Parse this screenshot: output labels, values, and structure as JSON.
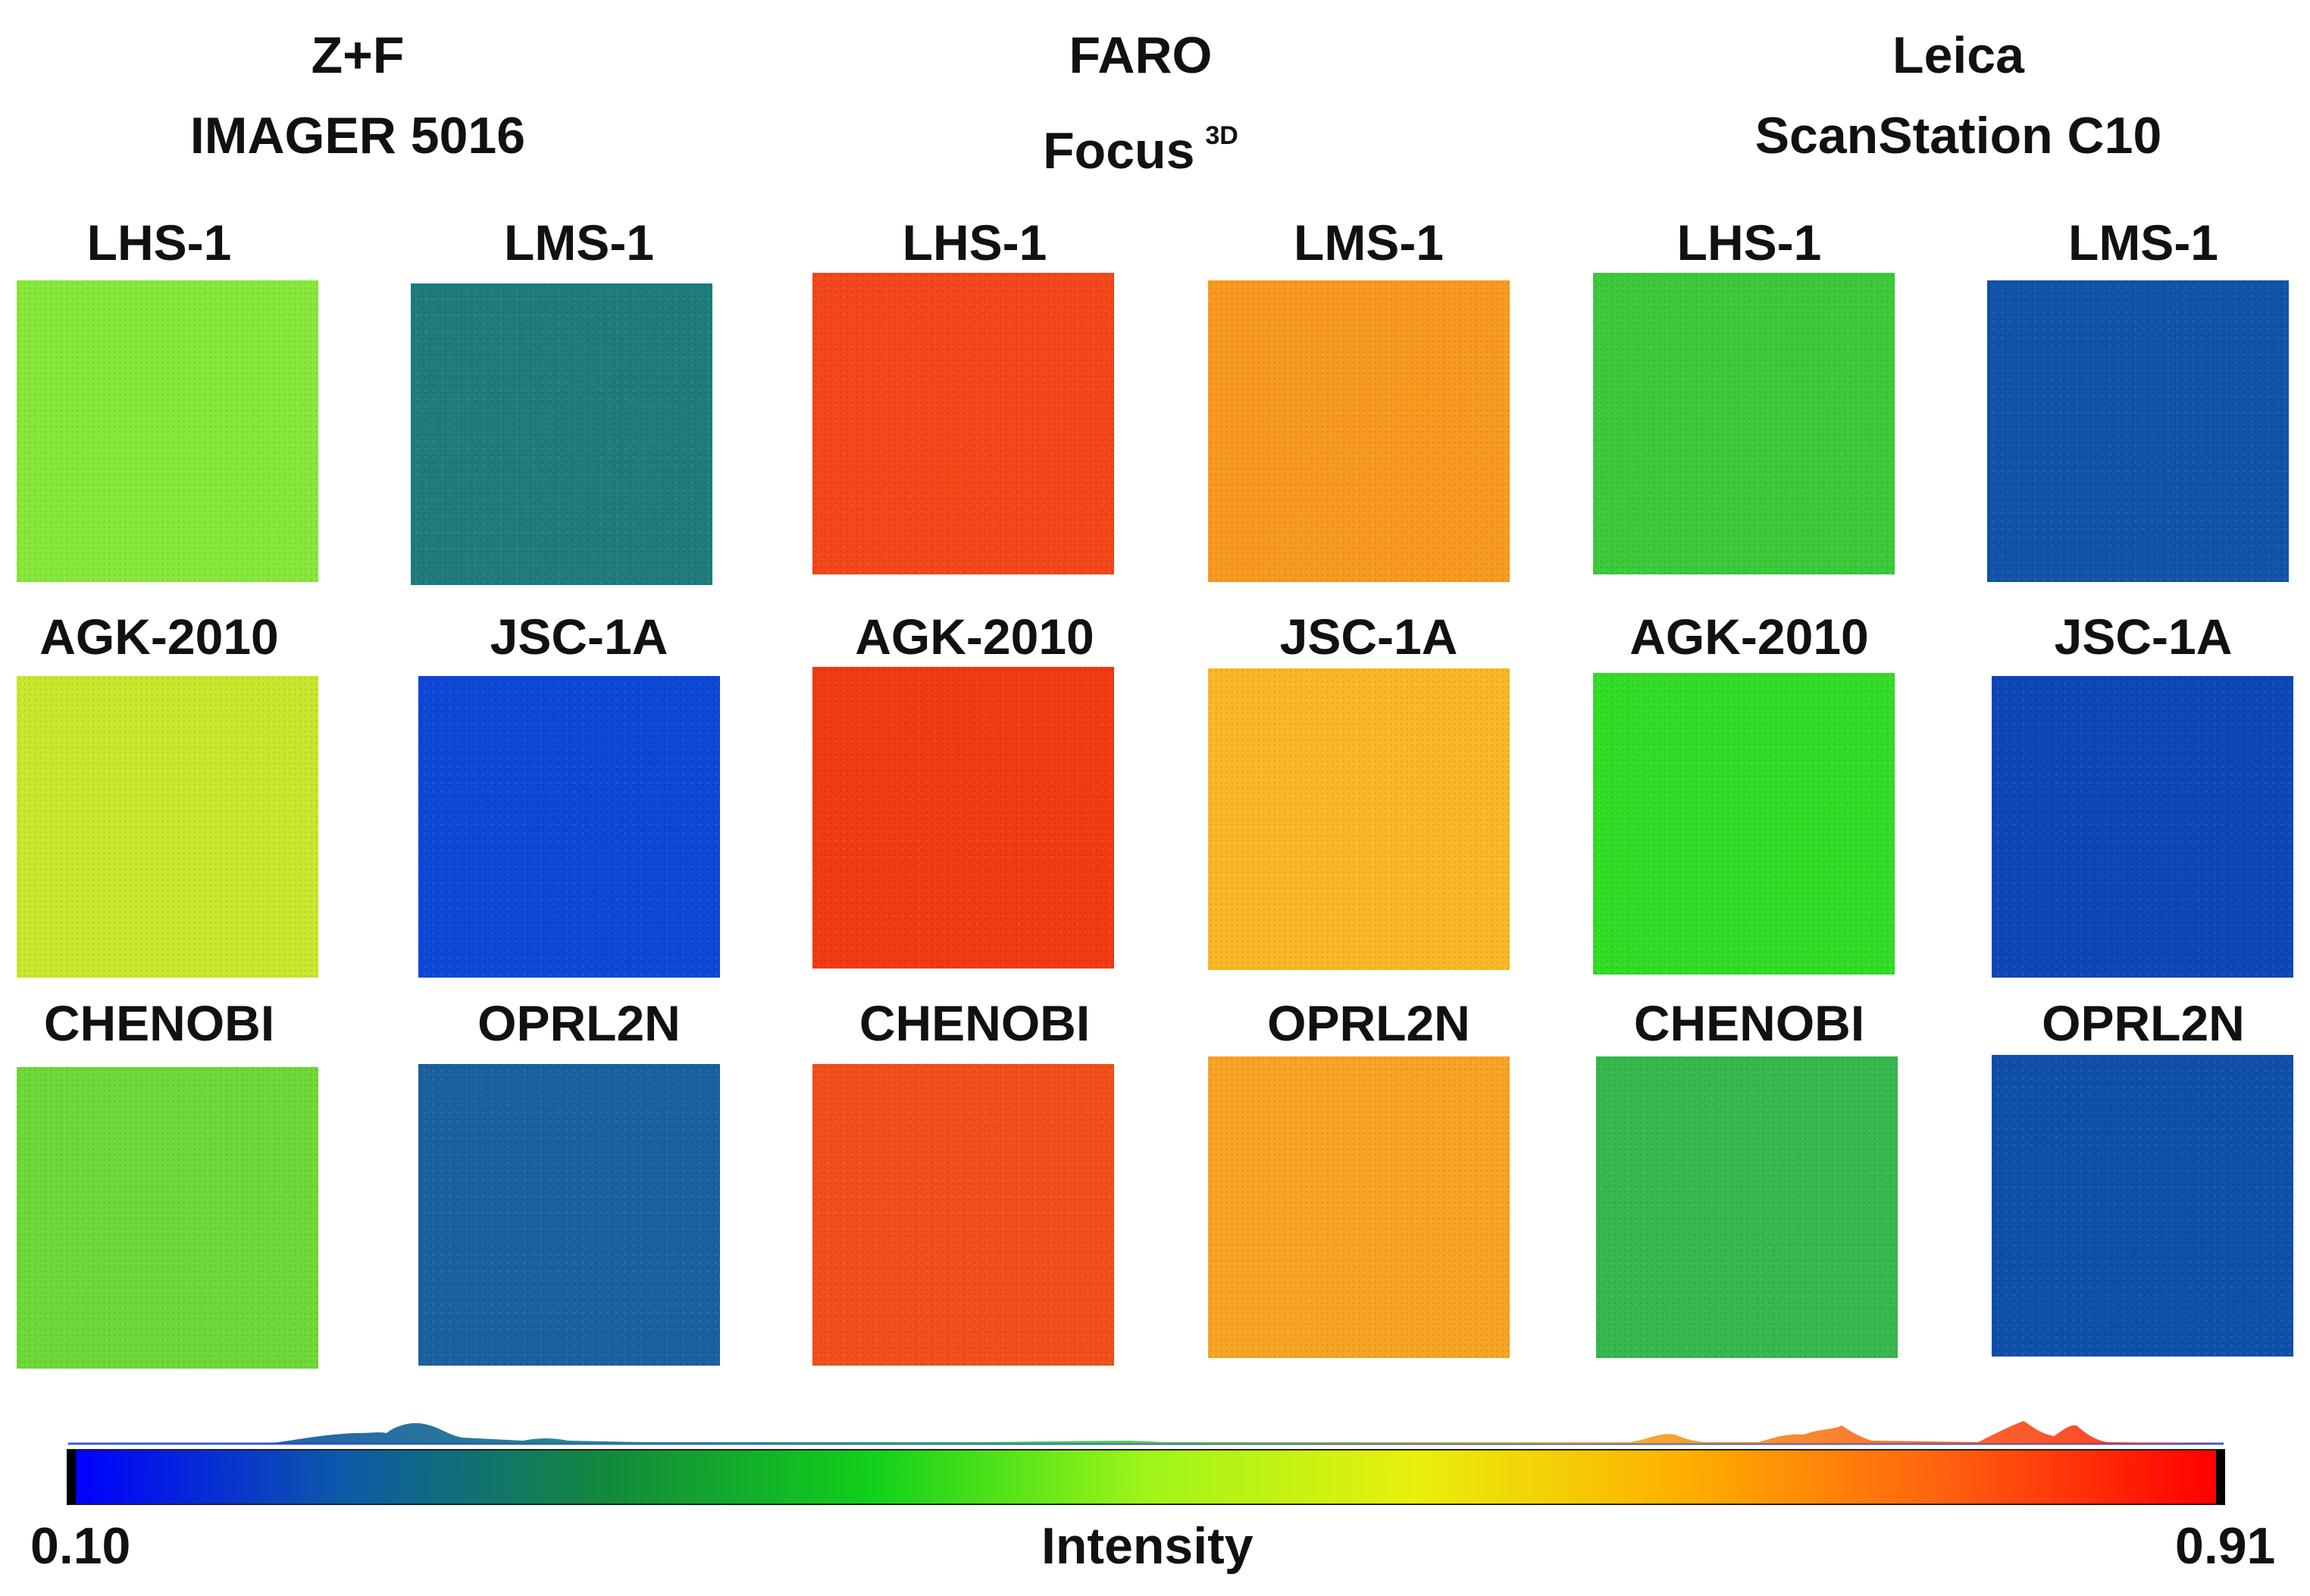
{
  "scanners": [
    {
      "name_line1": "Z+F",
      "name_line2": "IMAGER 5016",
      "superscript": ""
    },
    {
      "name_line1": "FARO",
      "name_line2": "Focus",
      "superscript": "3D"
    },
    {
      "name_line1": "Leica",
      "name_line2": "ScanStation C10",
      "superscript": ""
    }
  ],
  "samples": [
    [
      "LHS-1",
      "LMS-1"
    ],
    [
      "AGK-2010",
      "JSC-1A"
    ],
    [
      "CHENOBI",
      "OPRL2N"
    ]
  ],
  "tile_colors": [
    [
      "#86e83a",
      "#1e7d7c",
      "#f4471a",
      "#f99a1f",
      "#3cc93a",
      "#1154a8"
    ],
    [
      "#c7e82d",
      "#0c47d6",
      "#f23a12",
      "#fbb727",
      "#33dc26",
      "#0d47b8"
    ],
    [
      "#6ed838",
      "#1a629e",
      "#f24f1b",
      "#f8a423",
      "#36b84e",
      "#0e4fac"
    ]
  ],
  "colorbar": {
    "min_label": "0.10",
    "max_label": "0.91",
    "axis_label": "Intensity",
    "min": 0.1,
    "max": 0.91,
    "stops": [
      "#0000ff",
      "#0d5aa8",
      "#138a3a",
      "#12d21a",
      "#9ef51a",
      "#e8f00c",
      "#ffb000",
      "#ff6010",
      "#ff0000"
    ]
  }
}
